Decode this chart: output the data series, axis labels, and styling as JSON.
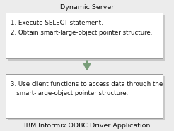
{
  "title_top": "Dynamic Server",
  "title_bottom": "IBM Informix ODBC Driver Application",
  "box1_line1": "1. Execute SELECT statement.",
  "box1_line2": "2. Obtain smart-large-object pointer structure.",
  "box2_line1": "3. Use client functions to access data through the",
  "box2_line2": "   smart-large-object pointer structure.",
  "bg_color": "#ececec",
  "box_fill": "#ffffff",
  "box_edge": "#999999",
  "shadow_color": "#c8c8c8",
  "arrow_color": "#7a9e7a",
  "text_color": "#111111",
  "title_color": "#111111",
  "font_size": 6.2,
  "title_font_size": 6.8
}
